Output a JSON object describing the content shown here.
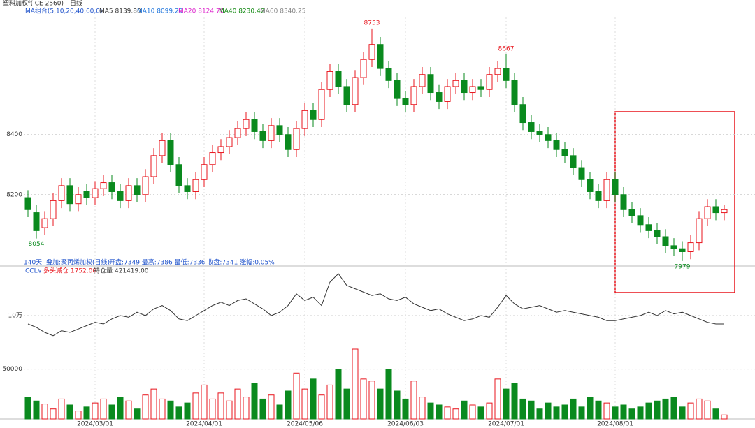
{
  "header": {
    "symbol": "塑料加权⁰(ICE 2560)",
    "period": "日线",
    "ma_group": "MA组合(5,10,20,40,60,0)",
    "ma": [
      "MA5 8139.80",
      "MA10 8099.20",
      "MA20 8124.70",
      "MA40 8230.42",
      "MA60 8340.25"
    ],
    "days": "140天",
    "overlay": "叠加:聚丙烯加权(日线)",
    "overlay_quote": "开盘:7349  最高:7386  最低:7336  收盘:7341  涨幅:0.05%",
    "indicator": "CCL∨",
    "oi_status": "多头减仓 1752.00",
    "oi_label": "持仓量 421419.00"
  },
  "chart_data": {
    "type": "candlestick",
    "categories": [
      null,
      null,
      null,
      null,
      null,
      null,
      null,
      null,
      "2024/03/01",
      null,
      null,
      null,
      null,
      null,
      null,
      null,
      null,
      null,
      null,
      null,
      null,
      "2024/04/01",
      null,
      null,
      null,
      null,
      null,
      null,
      null,
      null,
      null,
      null,
      null,
      "2024/05/06",
      null,
      null,
      null,
      null,
      null,
      null,
      null,
      null,
      null,
      null,
      null,
      "2024/06/03",
      null,
      null,
      null,
      null,
      null,
      null,
      null,
      null,
      null,
      null,
      null,
      "2024/07/01",
      null,
      null,
      null,
      null,
      null,
      null,
      null,
      null,
      null,
      null,
      null,
      null,
      "2024/08/01",
      null,
      null,
      null,
      null,
      null,
      null,
      null,
      null,
      null,
      null,
      null,
      null,
      null
    ],
    "open": [
      8190,
      8140,
      8090,
      8120,
      8180,
      8230,
      8170,
      8210,
      8190,
      8220,
      8240,
      8210,
      8180,
      8230,
      8200,
      8260,
      8330,
      8380,
      8300,
      8230,
      8210,
      8250,
      8300,
      8340,
      8360,
      8390,
      8420,
      8450,
      8410,
      8380,
      8430,
      8400,
      8350,
      8420,
      8480,
      8450,
      8550,
      8610,
      8560,
      8500,
      8590,
      8650,
      8700,
      8620,
      8580,
      8520,
      8500,
      8560,
      8600,
      8540,
      8510,
      8560,
      8580,
      8540,
      8560,
      8550,
      8600,
      8620,
      8580,
      8500,
      8440,
      8410,
      8400,
      8380,
      8350,
      8330,
      8290,
      8250,
      8210,
      8180,
      8250,
      8200,
      8150,
      8130,
      8100,
      8080,
      8060,
      8030,
      8020,
      8010,
      8040,
      8120,
      8160,
      8140
    ],
    "high": [
      8215,
      8165,
      8145,
      8205,
      8255,
      8255,
      8225,
      8235,
      8245,
      8265,
      8265,
      8235,
      8255,
      8255,
      8285,
      8355,
      8405,
      8405,
      8325,
      8255,
      8275,
      8325,
      8365,
      8385,
      8415,
      8445,
      8475,
      8475,
      8435,
      8455,
      8455,
      8425,
      8445,
      8505,
      8505,
      8575,
      8635,
      8635,
      8585,
      8615,
      8675,
      8753,
      8725,
      8645,
      8605,
      8545,
      8585,
      8625,
      8625,
      8565,
      8585,
      8605,
      8605,
      8585,
      8585,
      8625,
      8645,
      8667,
      8605,
      8525,
      8465,
      8435,
      8425,
      8405,
      8375,
      8355,
      8315,
      8275,
      8235,
      8275,
      8275,
      8225,
      8175,
      8155,
      8125,
      8105,
      8085,
      8055,
      8045,
      8065,
      8145,
      8185,
      8185,
      8165
    ],
    "low": [
      8125,
      8054,
      8065,
      8095,
      8155,
      8145,
      8145,
      8165,
      8165,
      8195,
      8185,
      8155,
      8155,
      8175,
      8175,
      8235,
      8305,
      8275,
      8205,
      8185,
      8185,
      8225,
      8275,
      8315,
      8335,
      8365,
      8395,
      8385,
      8355,
      8355,
      8375,
      8325,
      8325,
      8395,
      8425,
      8425,
      8525,
      8535,
      8475,
      8475,
      8565,
      8625,
      8595,
      8555,
      8495,
      8475,
      8475,
      8535,
      8515,
      8485,
      8485,
      8535,
      8515,
      8515,
      8525,
      8525,
      8575,
      8555,
      8475,
      8415,
      8385,
      8375,
      8355,
      8325,
      8305,
      8265,
      8225,
      8185,
      8155,
      8155,
      8175,
      8125,
      8105,
      8075,
      8055,
      8035,
      8005,
      7995,
      7979,
      7985,
      8015,
      8095,
      8115,
      8115
    ],
    "close": [
      8150,
      8080,
      8120,
      8180,
      8230,
      8170,
      8200,
      8190,
      8220,
      8240,
      8210,
      8180,
      8230,
      8200,
      8260,
      8330,
      8380,
      8300,
      8230,
      8210,
      8250,
      8300,
      8340,
      8360,
      8390,
      8420,
      8450,
      8410,
      8380,
      8430,
      8400,
      8350,
      8420,
      8480,
      8450,
      8550,
      8610,
      8560,
      8500,
      8590,
      8650,
      8700,
      8620,
      8580,
      8520,
      8500,
      8560,
      8600,
      8540,
      8510,
      8560,
      8580,
      8540,
      8560,
      8550,
      8600,
      8620,
      8580,
      8500,
      8440,
      8410,
      8400,
      8380,
      8350,
      8330,
      8290,
      8250,
      8210,
      8180,
      8250,
      8200,
      8150,
      8130,
      8100,
      8080,
      8060,
      8030,
      8020,
      8010,
      8040,
      8120,
      8160,
      8140,
      8150
    ],
    "open_interest": [
      90000,
      86000,
      80000,
      76000,
      82000,
      80000,
      84000,
      88000,
      92000,
      90000,
      96000,
      100000,
      98000,
      104000,
      100000,
      108000,
      112000,
      106000,
      96000,
      94000,
      100000,
      106000,
      112000,
      116000,
      112000,
      118000,
      120000,
      114000,
      108000,
      100000,
      104000,
      112000,
      126000,
      118000,
      122000,
      112000,
      140000,
      150000,
      136000,
      132000,
      128000,
      124000,
      126000,
      120000,
      118000,
      122000,
      114000,
      110000,
      106000,
      108000,
      102000,
      98000,
      94000,
      96000,
      100000,
      98000,
      110000,
      124000,
      114000,
      108000,
      110000,
      112000,
      108000,
      104000,
      106000,
      104000,
      102000,
      100000,
      98000,
      94000,
      94000,
      96000,
      98000,
      100000,
      104000,
      100000,
      106000,
      102000,
      104000,
      100000,
      96000,
      92000,
      90000,
      90000
    ],
    "volume": [
      22000,
      18000,
      15000,
      10000,
      20000,
      14000,
      8000,
      12000,
      16000,
      20000,
      14000,
      22000,
      18000,
      10000,
      24000,
      30000,
      20000,
      18000,
      12000,
      16000,
      26000,
      34000,
      20000,
      26000,
      18000,
      30000,
      22000,
      36000,
      20000,
      24000,
      14000,
      28000,
      46000,
      30000,
      40000,
      24000,
      34000,
      50000,
      30000,
      70000,
      40000,
      38000,
      30000,
      50000,
      28000,
      20000,
      38000,
      22000,
      16000,
      14000,
      12000,
      10000,
      18000,
      14000,
      12000,
      16000,
      40000,
      30000,
      36000,
      20000,
      18000,
      10000,
      16000,
      12000,
      14000,
      20000,
      12000,
      22000,
      18000,
      16000,
      12000,
      14000,
      10000,
      12000,
      16000,
      18000,
      20000,
      22000,
      12000,
      16000,
      20000,
      18000,
      10000,
      4000
    ],
    "ylim": [
      7960,
      8790
    ],
    "yticks": [
      8200,
      8400
    ],
    "oilim": [
      60000,
      160000
    ],
    "oiticks": [
      {
        "value": 100000,
        "label": "10万"
      }
    ],
    "vollim": [
      0,
      70000
    ],
    "volticks": [
      50000
    ],
    "up_color": "#e8141c",
    "down_color": "#0a8a1e",
    "line_color": "#333333",
    "grid": true
  }
}
